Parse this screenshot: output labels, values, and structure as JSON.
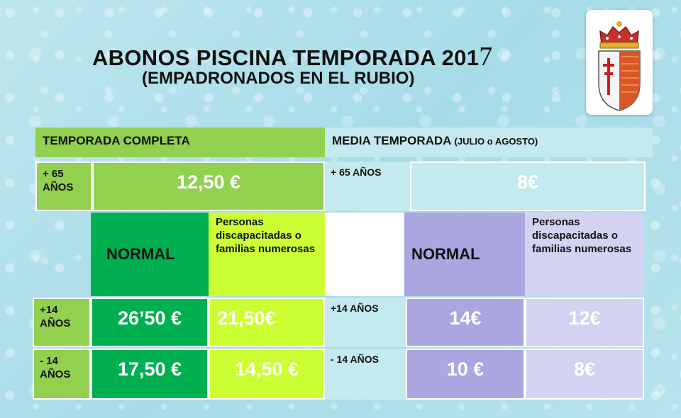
{
  "title": {
    "main": "ABONOS PISCINA TEMPORADA 201",
    "digit": "7",
    "subtitle": "(EMPADRONADOS EN EL RUBIO)"
  },
  "crest": {
    "icon": "municipal-coat-of-arms"
  },
  "headers": {
    "full_season": "TEMPORADA COMPLETA",
    "half_season": "MEDIA TEMPORADA",
    "half_season_note": "(JULIO o AGOSTO)"
  },
  "senior": {
    "full_label": "+ 65 AÑOS",
    "full_price": "12,50 €",
    "half_label": "+ 65 AÑOS",
    "half_price": "8€"
  },
  "categories": {
    "full_normal": "NORMAL",
    "full_reduced": "Personas discapacitadas o familias numerosas",
    "half_normal": "NORMAL",
    "half_reduced": "Personas discapacitadas o familias numerosas"
  },
  "over14": {
    "full_label": "+14 AÑOS",
    "full_normal": "26’50 €",
    "full_reduced": "21,50€",
    "half_label": "+14 AÑOS",
    "half_normal": "14€",
    "half_reduced": "12€"
  },
  "under14": {
    "full_label": "- 14 AÑOS",
    "full_normal": "17,50 €",
    "full_reduced": "14,50 €",
    "half_label": "- 14 AÑOS",
    "half_normal": "10 €",
    "half_reduced": "8€"
  },
  "colors": {
    "green": "#92d050",
    "dark_green": "#00b050",
    "yellow_green": "#ccff33",
    "pale_blue": "#c4e9ee",
    "lavender": "#a9a6e0",
    "light_lavender": "#d3d2f3"
  }
}
